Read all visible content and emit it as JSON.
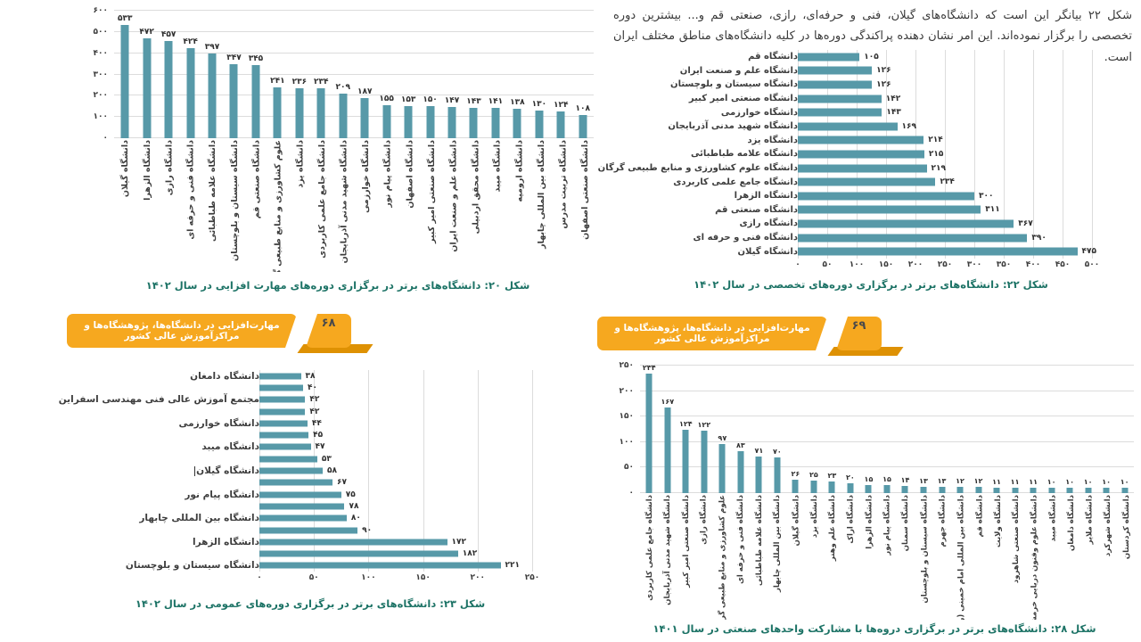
{
  "intro_text": "شکل ۲۲ بیانگر این است که دانشگاه‌های گیلان، فنی و حرفه‌ای، رازی، صنعتی قم و... بیشترین دوره تخصصی را برگزار نموده‌اند. این امر نشان دهنده پراکندگی دوره‌ها در کلیه دانشگاه‌های مناطق مختلف ایران است.",
  "banners": {
    "left": {
      "page_number": "۶۸",
      "label": "مهارت‌افزایی در دانشگاه‌ها، پژوهشگاه‌ها و مراکزآموزش عالی کشور"
    },
    "right": {
      "page_number": "۶۹",
      "label": "مهارت‌افزایی در دانشگاه‌ها، پژوهشگاه‌ها و مراکزآموزش عالی کشور"
    }
  },
  "colors": {
    "bar": "#5799a8",
    "caption": "#1d7366",
    "banner_yellow": "#f6a81f",
    "banner_shadow": "#de9103",
    "grid": "#dcdcdc",
    "text": "#3d3d3d"
  },
  "chart_data": [
    {
      "id": "fig20",
      "type": "bar",
      "orientation": "vertical",
      "title": "شکل ۲۰: دانشگاه‌های برتر در برگزاری دوره‌های مهارت افزایی در سال ۱۴۰۲",
      "categories": [
        "دانشگاه گیلان",
        "دانشگاه الزهرا",
        "دانشگاه رازی",
        "دانشگاه فنی و حرفه ای",
        "دانشگاه علامه طباطبائی",
        "دانشگاه سیستان و بلوچستان",
        "دانشگاه صنعتی قم",
        "علوم کشاورزی و منابع طبیعی گرگان",
        "دانشگاه یزد",
        "دانشگاه جامع علمی کاربردی",
        "دانشگاه شهید مدنی آذربایجان",
        "دانشگاه خوارزمی",
        "دانشگاه پیام نور",
        "دانشگاه اصفهان",
        "دانشگاه صنعتی امیر کبیر",
        "دانشگاه علم و صنعت ایران",
        "دانشگاه محقق اردبیلی",
        "دانشگاه میبد",
        "دانشگاه ارومیه",
        "دانشگاه بین المللی چابهار",
        "دانشگاه تربیت مدرس",
        "دانشگاه صنعتی اصفهان"
      ],
      "values": [
        533,
        472,
        457,
        424,
        397,
        347,
        345,
        241,
        236,
        234,
        209,
        187,
        155,
        153,
        150,
        147,
        143,
        141,
        138,
        130,
        124,
        108
      ],
      "ylim": [
        0,
        600
      ],
      "tick_step": 100,
      "grid": true
    },
    {
      "id": "fig22",
      "type": "bar",
      "orientation": "horizontal",
      "title": "شکل ۲۲: دانشگاه‌های برتر در برگزاری دوره‌های تخصصی در سال ۱۴۰۲",
      "categories": [
        "دانشگاه قم",
        "دانشگاه علم و صنعت ایران",
        "دانشگاه سیستان و بلوچستان",
        "دانشگاه صنعتی امیر کبیر",
        "دانشگاه خوارزمی",
        "دانشگاه شهید مدنی آذربایجان",
        "دانشگاه یزد",
        "دانشگاه علامه طباطبائی",
        "دانشگاه علوم کشاورزی و منابع طبیعی گرگان",
        "دانشگاه جامع علمی کاربردی",
        "دانشگاه الزهرا",
        "دانشگاه صنعتی قم",
        "دانشگاه رازی",
        "دانشگاه فنی و حرفه ای",
        "دانشگاه گیلان"
      ],
      "values": [
        105,
        126,
        126,
        142,
        143,
        169,
        214,
        215,
        219,
        234,
        300,
        311,
        367,
        390,
        475
      ],
      "xlim": [
        0,
        500
      ],
      "tick_step": 50,
      "grid": true
    },
    {
      "id": "fig23",
      "type": "bar",
      "orientation": "horizontal",
      "title": "شکل ۲۳: دانشگاه‌های برتر در برگزاری دوره‌های عمومی در سال ۱۴۰۲",
      "categories": [
        "دانشگاه دامغان",
        "",
        "مجتمع آموزش عالی فنی مهندسی اسفراین",
        "",
        "دانشگاه خوارزمی",
        "",
        "دانشگاه میبد",
        "",
        "دانشگاه گیلان",
        "",
        "دانشگاه پیام نور",
        "",
        "دانشگاه بین المللی چابهار",
        "",
        "دانشگاه الزهرا",
        "",
        "دانشگاه سیستان و بلوچستان"
      ],
      "values": [
        38,
        40,
        42,
        42,
        44,
        45,
        47,
        53,
        58,
        67,
        75,
        78,
        80,
        90,
        172,
        182,
        221
      ],
      "xlim": [
        0,
        250
      ],
      "tick_step": 50,
      "grid": true
    },
    {
      "id": "fig28",
      "type": "bar",
      "orientation": "vertical",
      "title": "شکل ۲۸: دانشگاه‌های برتر در برگزاری دروه‌ها با مشارکت واحدهای صنعتی در سال ۱۴۰۱",
      "categories": [
        "دانشگاه جامع علمی کاربردی",
        "دانشگاه شهید مدنی آذربایجان",
        "دانشگاه صنعتی امیر کبیر",
        "دانشگاه رازی",
        "علوم کشاورزی و منابع طبیعی گرگان",
        "دانشگاه فنی و حرفه ای",
        "دانشگاه علامه طباطبائی",
        "دانشگاه بین المللی چابهار",
        "دانشگاه گیلان",
        "دانشگاه یزد",
        "دانشگاه علم وهنر",
        "دانشگاه اراک",
        "دانشگاه الزهرا",
        "دانشگاه پیام نور",
        "دانشگاه سمنان",
        "دانشگاه سیستان و بلوچستان",
        "دانشگاه جهرم",
        "دانشگاه بین المللی امام خمینی (ره)",
        "دانشگاه قم",
        "دانشگاه ولایت",
        "دانشگاه صنعتی شاهرود",
        "دانشگاه علوم وفنون دریایی خرمشهر",
        "دانشگاه میبد",
        "دانشگاه دامغان",
        "دانشگاه ملایر",
        "دانشگاه شهرکرد",
        "دانشگاه کردستان"
      ],
      "values": [
        234,
        167,
        124,
        122,
        97,
        83,
        71,
        70,
        26,
        25,
        23,
        20,
        15,
        15,
        14,
        13,
        13,
        12,
        12,
        11,
        11,
        11,
        10,
        10,
        10,
        10,
        10
      ],
      "ylim": [
        0,
        250
      ],
      "tick_step": 50,
      "grid": true
    }
  ]
}
